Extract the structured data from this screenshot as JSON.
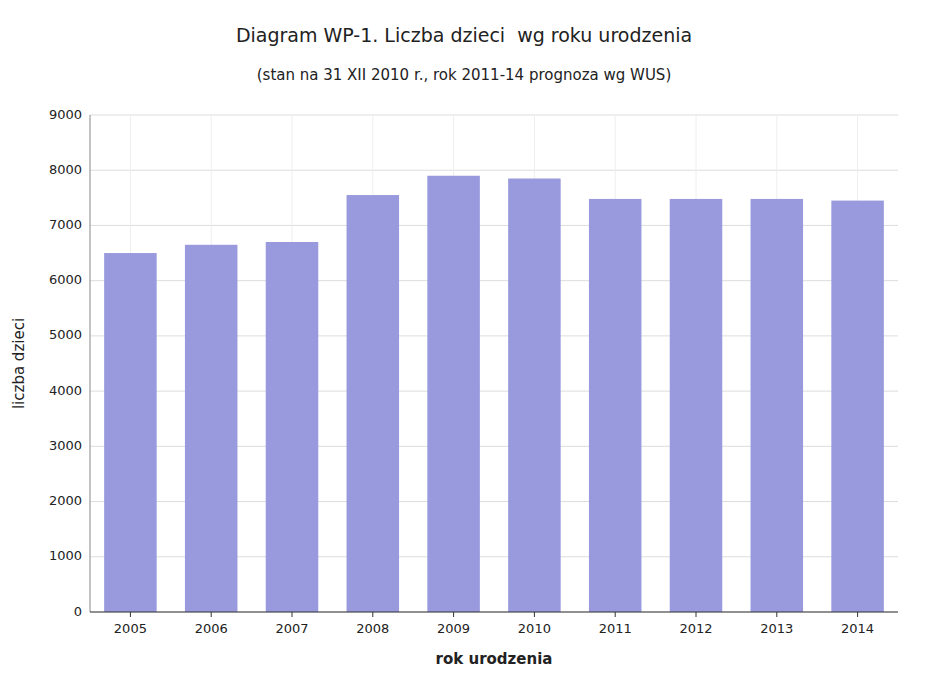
{
  "chart_data": {
    "type": "bar",
    "title": "Diagram WP-1. Liczba dzieci  wg roku urodzenia",
    "subtitle": "(stan na 31 XII 2010 r., rok 2011-14 prognoza wg WUS)",
    "xlabel": "rok urodzenia",
    "ylabel": "liczba dzieci",
    "categories": [
      "2005",
      "2006",
      "2007",
      "2008",
      "2009",
      "2010",
      "2011",
      "2012",
      "2013",
      "2014"
    ],
    "values": [
      6500,
      6650,
      6700,
      7550,
      7900,
      7850,
      7480,
      7480,
      7480,
      7450
    ],
    "color": "#9999dd",
    "ylim": [
      0,
      9000
    ],
    "yticks": [
      0,
      1000,
      2000,
      3000,
      4000,
      5000,
      6000,
      7000,
      8000,
      9000
    ],
    "grid": true
  }
}
